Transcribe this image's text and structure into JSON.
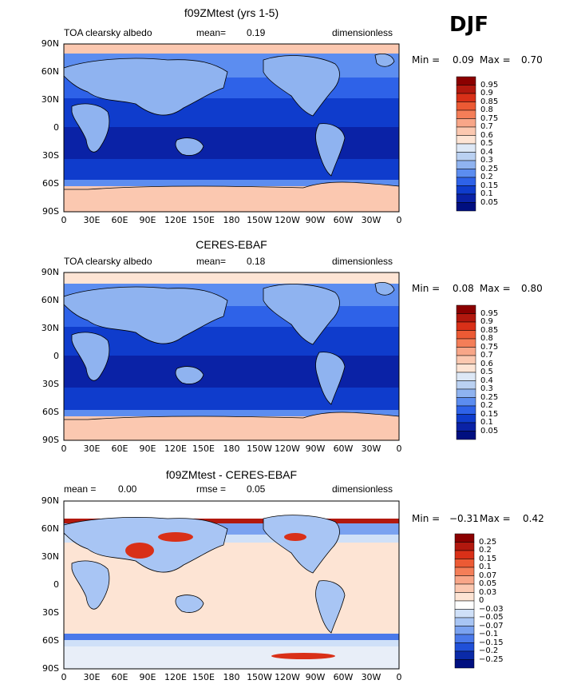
{
  "season": "DJF",
  "lat_labels": [
    "90N",
    "60N",
    "30N",
    "0",
    "30S",
    "60S",
    "90S"
  ],
  "lon_labels": [
    "0",
    "30E",
    "60E",
    "90E",
    "120E",
    "150E",
    "180",
    "150W",
    "120W",
    "90W",
    "60W",
    "30W",
    "0"
  ],
  "panels": [
    {
      "title": "f09ZMtest (yrs 1-5)",
      "left_label": "TOA clearsky albedo",
      "mean_label": "mean=",
      "mean_value": "0.19",
      "units": "dimensionless",
      "min_label": "Min =",
      "min_value": "0.09",
      "max_label": "Max =",
      "max_value": "0.70",
      "colorbar": {
        "labels": [
          "0.95",
          "0.9",
          "0.85",
          "0.8",
          "0.75",
          "0.7",
          "0.6",
          "0.5",
          "0.4",
          "0.3",
          "0.25",
          "0.2",
          "0.15",
          "0.1",
          "0.05"
        ],
        "colors": [
          "#8b0000",
          "#b2180e",
          "#d93018",
          "#ec5a34",
          "#f47e58",
          "#f8a688",
          "#fbc8b0",
          "#fde4d4",
          "#dde8f6",
          "#bad1f2",
          "#8fb3f0",
          "#5c8df0",
          "#2e62e8",
          "#0f3ccc",
          "#0a22a6",
          "#000f80"
        ]
      }
    },
    {
      "title": "CERES-EBAF",
      "left_label": "TOA clearsky albedo",
      "mean_label": "mean=",
      "mean_value": "0.18",
      "units": "dimensionless",
      "min_label": "Min =",
      "min_value": "0.08",
      "max_label": "Max =",
      "max_value": "0.80",
      "colorbar": {
        "labels": [
          "0.95",
          "0.9",
          "0.85",
          "0.8",
          "0.75",
          "0.7",
          "0.6",
          "0.5",
          "0.4",
          "0.3",
          "0.25",
          "0.2",
          "0.15",
          "0.1",
          "0.05"
        ],
        "colors": [
          "#8b0000",
          "#b2180e",
          "#d93018",
          "#ec5a34",
          "#f47e58",
          "#f8a688",
          "#fbc8b0",
          "#fde4d4",
          "#dde8f6",
          "#bad1f2",
          "#8fb3f0",
          "#5c8df0",
          "#2e62e8",
          "#0f3ccc",
          "#0a22a6",
          "#000f80"
        ]
      }
    },
    {
      "title": "f09ZMtest - CERES-EBAF",
      "left_label": "mean =",
      "left_value": "0.00",
      "mid_label": "rmse =",
      "mid_value": "0.05",
      "units": "dimensionless",
      "min_label": "Min =",
      "min_value": "−0.31",
      "max_label": "Max =",
      "max_value": "0.42",
      "colorbar": {
        "labels": [
          "0.25",
          "0.2",
          "0.15",
          "0.1",
          "0.07",
          "0.05",
          "0.03",
          "0",
          "−0.03",
          "−0.05",
          "−0.07",
          "−0.1",
          "−0.15",
          "−0.2",
          "−0.25"
        ],
        "colors": [
          "#8b0000",
          "#b2180e",
          "#d93018",
          "#ec5a34",
          "#f47e58",
          "#f8a688",
          "#fbc8b0",
          "#fde4d4",
          "#ffffff",
          "#cfe0f8",
          "#a8c5f4",
          "#7aa2f0",
          "#4a79ea",
          "#2050d8",
          "#0a2aa8",
          "#000f80"
        ]
      }
    }
  ]
}
